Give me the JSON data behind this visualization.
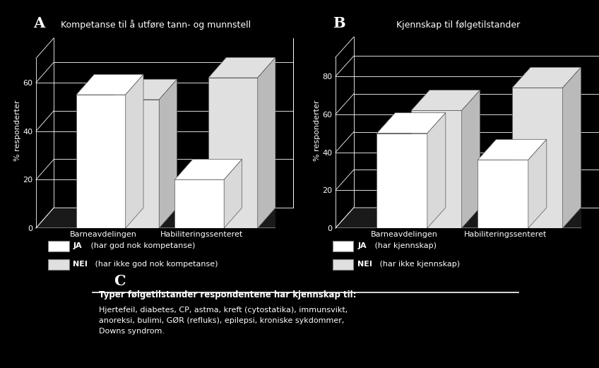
{
  "background_color": "#000000",
  "text_color": "#ffffff",
  "panel_A": {
    "title": "Kompetanse til å utføre tann- og munnstell",
    "ylabel": "% responderter",
    "categories": [
      "Barneavdelingen",
      "Habiliteringssenteret"
    ],
    "ja_values": [
      55,
      20
    ],
    "nei_values": [
      53,
      62
    ],
    "ylim": [
      0,
      70
    ],
    "yticks": [
      0,
      20,
      40,
      60
    ],
    "legend_ja": "JA (har god nok kompetanse)",
    "legend_nei": "NEI (har ikke god nok kompetanse)"
  },
  "panel_B": {
    "title": "Kjennskap til følgetilstander",
    "ylabel": "% responderter",
    "categories": [
      "Barneavdelingen",
      "Habiliteringssenteret"
    ],
    "ja_values": [
      50,
      36
    ],
    "nei_values": [
      62,
      74
    ],
    "ylim": [
      0,
      90
    ],
    "yticks": [
      0,
      20,
      40,
      60,
      80
    ],
    "legend_ja": "JA (har kjennskap)",
    "legend_nei": "NEI (har ikke kjennskap)"
  },
  "panel_C": {
    "label": "C",
    "box_title": "Typer følgetilstander respondentene har kjennskap til:",
    "box_text": "Hjertefeil, diabetes, CP, astma, kreft (cytostatika), immunsvikt,\nanoreksi, bulimi, GØR (refluks), epilepsi, kroniske sykdommer,\nDowns syndrom."
  }
}
